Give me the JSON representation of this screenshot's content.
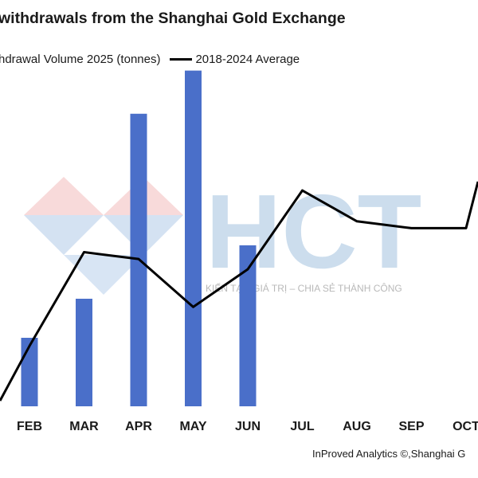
{
  "chart_data": {
    "type": "bar",
    "title": "withdrawals from the Shanghai Gold Exchange",
    "categories": [
      "FEB",
      "MAR",
      "APR",
      "MAY",
      "JUN",
      "JUL",
      "AUG",
      "SEP",
      "OCT"
    ],
    "series": [
      {
        "name": "hdrawal Volume 2025 (tonnes)",
        "type": "bar",
        "color": "#4a6fc9",
        "values": [
          100,
          157,
          427,
          490,
          235,
          null,
          null,
          null,
          null
        ]
      },
      {
        "name": "2018-2024 Average",
        "type": "line",
        "color": "#000000",
        "values": [
          88,
          225,
          215,
          145,
          200,
          315,
          270,
          260,
          260
        ]
      }
    ],
    "ylim": [
      0,
      500
    ],
    "grid": false,
    "legend_position": "top-left",
    "source": "InProved Analytics ©,Shanghai G"
  },
  "watermark": {
    "text": "HCT",
    "tagline": "KIẾN TẠO GIÁ TRỊ – CHIA SẺ THÀNH CÔNG"
  }
}
